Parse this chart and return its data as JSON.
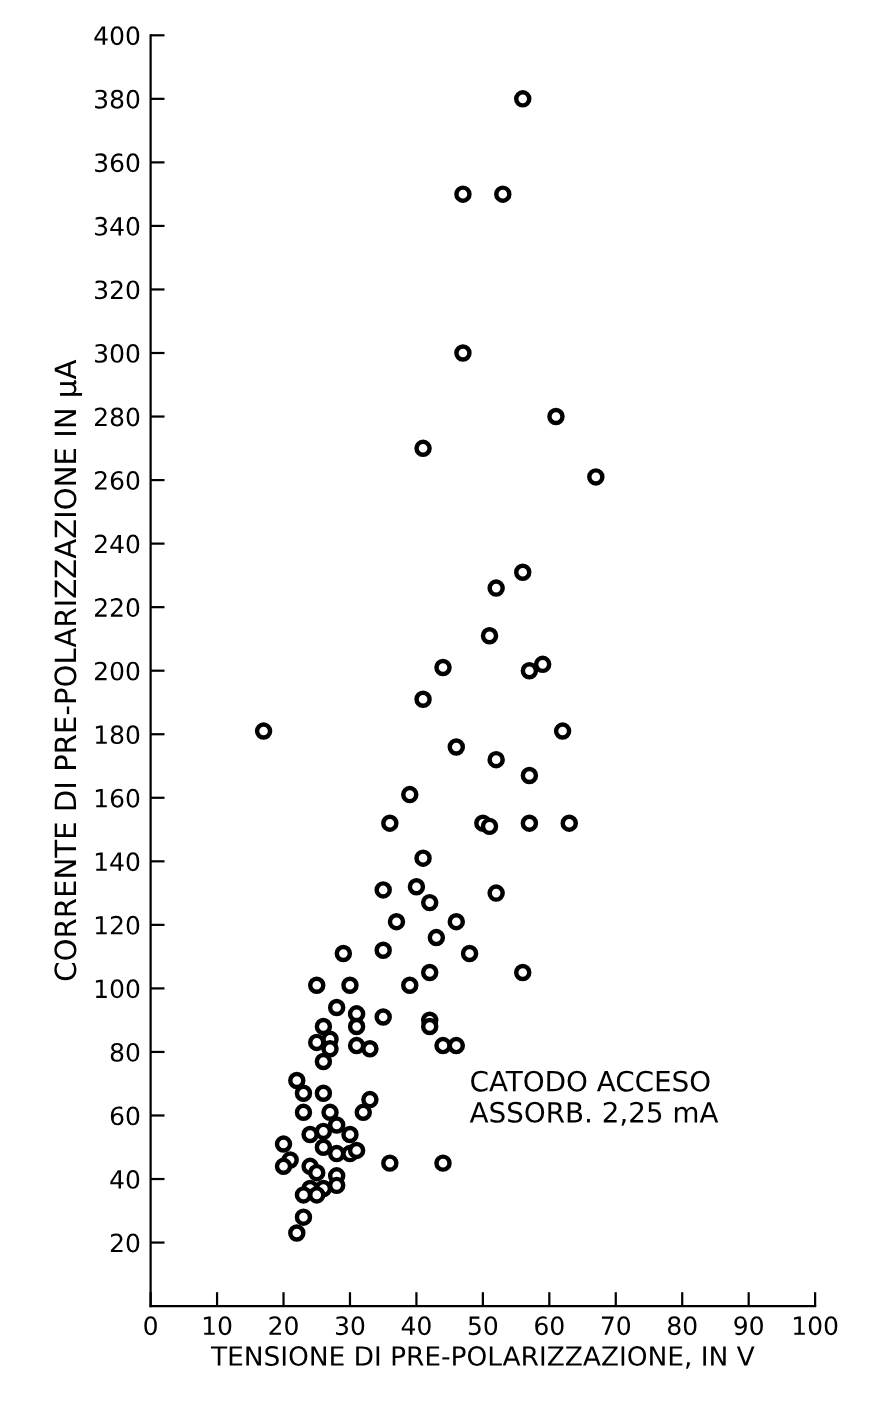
{
  "chart_data": {
    "type": "scatter",
    "xlabel": "TENSIONE DI PRE-POLARIZZAZIONE, IN V",
    "ylabel": "CORRENTE DI PRE-POLARIZZAZIONE IN μA",
    "annotations": [
      "CATODO ACCESO\nASSORB. 2,25 mA"
    ],
    "xlim": [
      0,
      100
    ],
    "ylim": [
      0,
      400
    ],
    "xticks": [
      0,
      10,
      20,
      30,
      40,
      50,
      60,
      70,
      80,
      90,
      100
    ],
    "yticks": [
      20,
      40,
      60,
      80,
      100,
      120,
      140,
      160,
      180,
      200,
      220,
      240,
      260,
      280,
      300,
      320,
      340,
      360,
      380,
      400
    ],
    "grid": false,
    "marker": "circle",
    "series": [
      {
        "color": "#000000",
        "x": [
          56,
          47,
          53,
          47,
          41,
          61,
          67,
          56,
          52,
          51,
          44,
          57,
          59,
          41,
          17,
          62,
          46,
          52,
          57,
          39,
          36,
          50,
          51,
          57,
          63,
          41,
          35,
          40,
          42,
          52,
          37,
          46,
          43,
          29,
          35,
          48,
          56,
          42,
          25,
          30,
          39,
          28,
          31,
          35,
          42,
          42,
          31,
          26,
          27,
          25,
          27,
          26,
          31,
          33,
          44,
          46,
          22,
          23,
          26,
          33,
          32,
          23,
          27,
          28,
          30,
          26,
          24,
          20,
          26,
          28,
          30,
          31,
          21,
          20,
          24,
          25,
          36,
          44,
          28,
          28,
          24,
          26,
          23,
          25,
          23,
          22
        ],
        "values": [
          380,
          350,
          350,
          300,
          270,
          280,
          261,
          231,
          226,
          211,
          201,
          200,
          202,
          191,
          181,
          181,
          176,
          172,
          167,
          161,
          152,
          152,
          151,
          152,
          152,
          141,
          131,
          132,
          127,
          130,
          121,
          121,
          116,
          111,
          112,
          111,
          105,
          105,
          101,
          101,
          101,
          94,
          92,
          91,
          90,
          88,
          88,
          88,
          84,
          83,
          81,
          77,
          82,
          81,
          82,
          82,
          71,
          67,
          67,
          65,
          61,
          61,
          61,
          57,
          54,
          55,
          54,
          51,
          50,
          48,
          48,
          49,
          46,
          44,
          44,
          42,
          45,
          45,
          41,
          38,
          37,
          37,
          35,
          35,
          28,
          23
        ]
      }
    ]
  }
}
